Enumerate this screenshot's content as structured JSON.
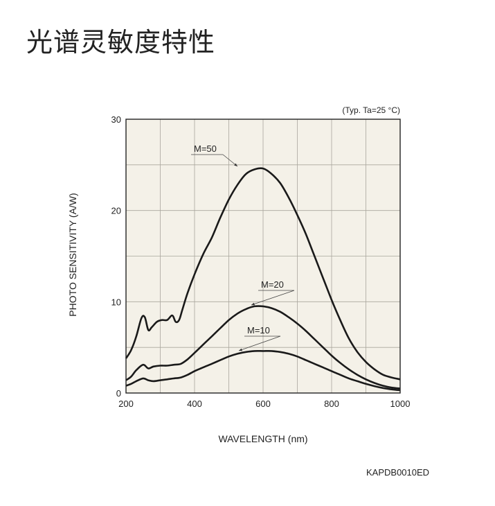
{
  "title": "光谱灵敏度特性",
  "figure_code": "KAPDB0010ED",
  "chart_data": {
    "type": "line",
    "condition_note": "(Typ. Ta=25 °C)",
    "xlabel": "WAVELENGTH (nm)",
    "ylabel": "PHOTO SENSITIVITY (A/W)",
    "xlim": [
      200,
      1000
    ],
    "ylim": [
      0,
      30
    ],
    "xticks": [
      200,
      400,
      600,
      800,
      1000
    ],
    "yticks": [
      0,
      10,
      20,
      30
    ],
    "grid": true,
    "background": "#f4f1e8",
    "line_color": "#1a1a1a",
    "series": [
      {
        "name": "M=50",
        "x": [
          200,
          215,
          230,
          245,
          255,
          265,
          275,
          290,
          305,
          320,
          335,
          345,
          355,
          365,
          380,
          400,
          425,
          450,
          475,
          500,
          525,
          550,
          575,
          600,
          625,
          650,
          675,
          700,
          725,
          750,
          775,
          800,
          825,
          850,
          875,
          900,
          925,
          950,
          975,
          1000
        ],
        "y": [
          3.8,
          4.7,
          6.2,
          8.2,
          8.3,
          6.9,
          7.2,
          7.8,
          8.0,
          8.0,
          8.5,
          7.8,
          8.0,
          9.2,
          11.0,
          13.0,
          15.2,
          17.0,
          19.2,
          21.2,
          22.8,
          24.0,
          24.5,
          24.6,
          24.0,
          23.0,
          21.4,
          19.5,
          17.4,
          15.0,
          12.6,
          10.2,
          8.0,
          6.0,
          4.5,
          3.4,
          2.6,
          2.0,
          1.7,
          1.5
        ]
      },
      {
        "name": "M=20",
        "x": [
          200,
          215,
          230,
          250,
          265,
          280,
          300,
          320,
          340,
          360,
          380,
          400,
          425,
          450,
          475,
          500,
          525,
          550,
          575,
          600,
          625,
          650,
          675,
          700,
          725,
          750,
          775,
          800,
          825,
          850,
          875,
          900,
          925,
          950,
          975,
          1000
        ],
        "y": [
          1.4,
          1.8,
          2.5,
          3.1,
          2.7,
          2.9,
          3.0,
          3.0,
          3.1,
          3.2,
          3.7,
          4.4,
          5.3,
          6.2,
          7.1,
          8.0,
          8.7,
          9.2,
          9.5,
          9.5,
          9.3,
          8.9,
          8.3,
          7.6,
          6.8,
          5.9,
          5.0,
          4.1,
          3.3,
          2.6,
          2.0,
          1.5,
          1.1,
          0.8,
          0.6,
          0.5
        ]
      },
      {
        "name": "M=10",
        "x": [
          200,
          215,
          230,
          250,
          265,
          280,
          300,
          320,
          340,
          360,
          380,
          400,
          425,
          450,
          475,
          500,
          525,
          550,
          575,
          600,
          625,
          650,
          675,
          700,
          725,
          750,
          775,
          800,
          825,
          850,
          875,
          900,
          925,
          950,
          975,
          1000
        ],
        "y": [
          0.8,
          1.0,
          1.3,
          1.6,
          1.4,
          1.3,
          1.4,
          1.5,
          1.6,
          1.7,
          2.0,
          2.4,
          2.8,
          3.2,
          3.6,
          4.0,
          4.3,
          4.5,
          4.6,
          4.6,
          4.6,
          4.5,
          4.3,
          4.0,
          3.6,
          3.2,
          2.8,
          2.4,
          2.0,
          1.6,
          1.3,
          1.0,
          0.75,
          0.55,
          0.4,
          0.3
        ]
      }
    ],
    "annotations": [
      {
        "text": "M=50",
        "series": "M=50"
      },
      {
        "text": "M=20",
        "series": "M=20"
      },
      {
        "text": "M=10",
        "series": "M=10"
      }
    ]
  }
}
